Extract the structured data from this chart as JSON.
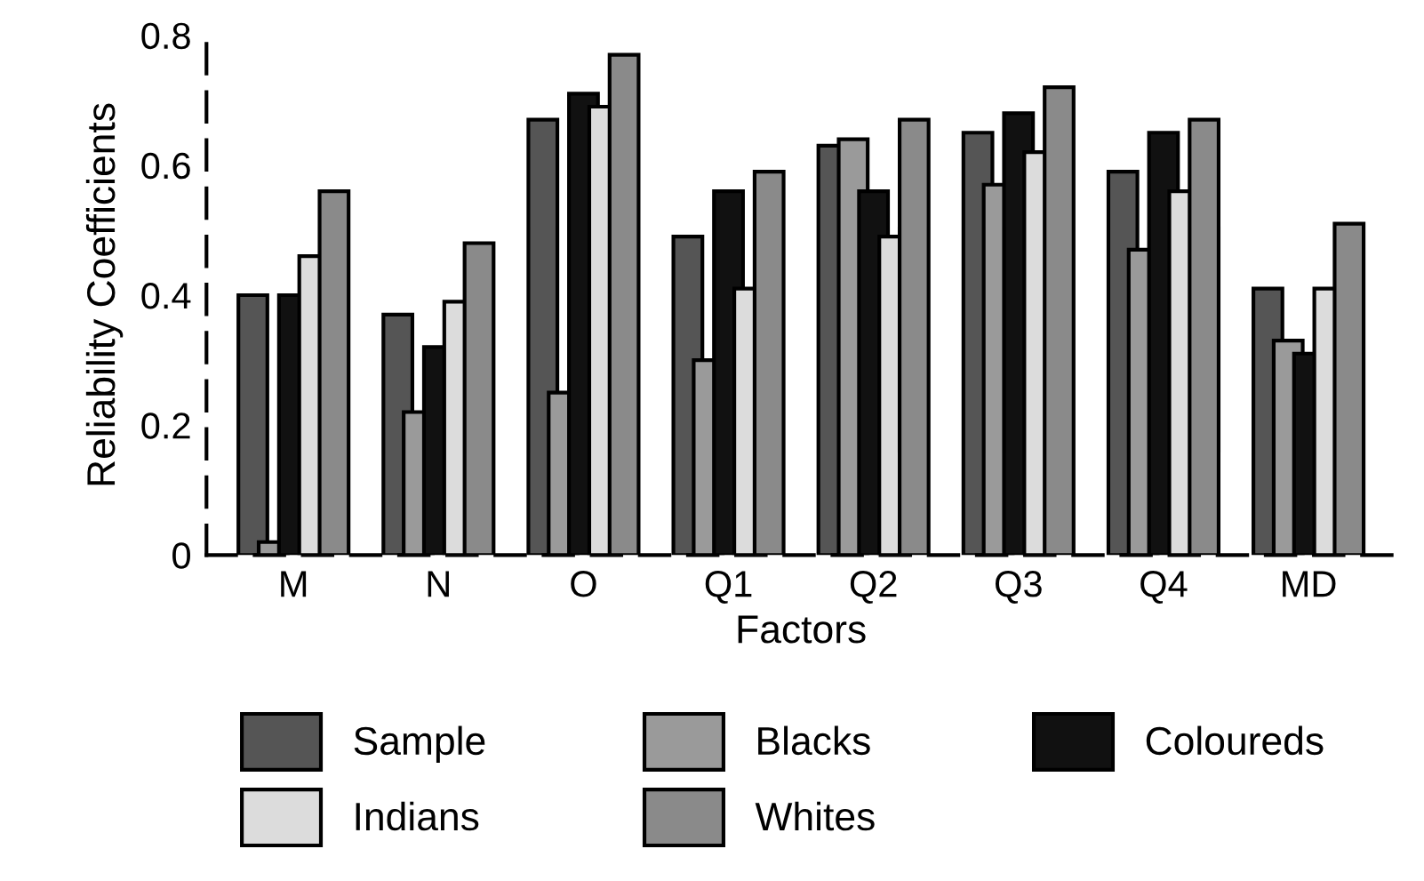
{
  "chart_data": {
    "type": "bar",
    "xlabel": "Factors",
    "ylabel": "Reliability Coefficients",
    "categories": [
      "M",
      "N",
      "O",
      "Q1",
      "Q2",
      "Q3",
      "Q4",
      "MD"
    ],
    "series": [
      {
        "name": "Sample",
        "color": "#555555",
        "values": [
          0.4,
          0.37,
          0.67,
          0.49,
          0.63,
          0.65,
          0.59,
          0.41
        ]
      },
      {
        "name": "Blacks",
        "color": "#9a9a9a",
        "values": [
          0.02,
          0.22,
          0.25,
          0.3,
          0.64,
          0.57,
          0.47,
          0.33
        ]
      },
      {
        "name": "Coloureds",
        "color": "#111111",
        "values": [
          0.4,
          0.32,
          0.71,
          0.56,
          0.56,
          0.68,
          0.65,
          0.31
        ]
      },
      {
        "name": "Indians",
        "color": "#dcdcdc",
        "values": [
          0.46,
          0.39,
          0.69,
          0.41,
          0.49,
          0.62,
          0.56,
          0.41
        ]
      },
      {
        "name": "Whites",
        "color": "#8a8a8a",
        "values": [
          0.56,
          0.48,
          0.77,
          0.59,
          0.67,
          0.72,
          0.67,
          0.51
        ]
      }
    ],
    "ylim": [
      0,
      0.8
    ],
    "yticks": [
      {
        "value": 0,
        "label": "0"
      },
      0.2,
      0.4,
      0.6,
      0.8
    ],
    "grid": false,
    "legend": "bottom"
  }
}
